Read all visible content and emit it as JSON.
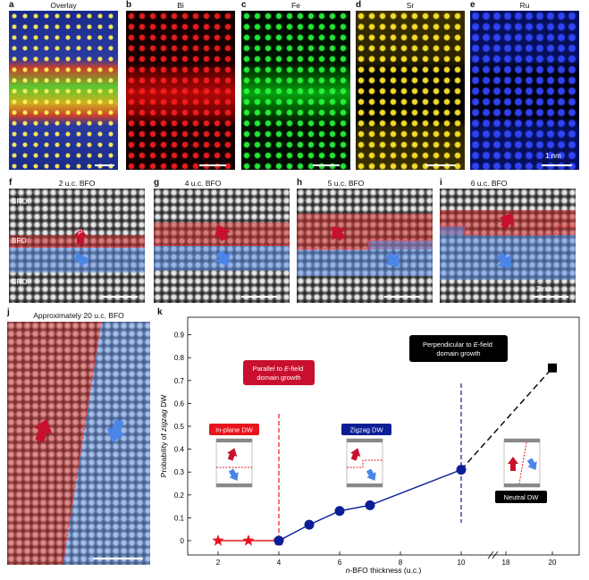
{
  "top_row": {
    "panels": [
      {
        "letter": "a",
        "title": "Overlay"
      },
      {
        "letter": "b",
        "title": "Bi"
      },
      {
        "letter": "c",
        "title": "Fe"
      },
      {
        "letter": "d",
        "title": "Sr"
      },
      {
        "letter": "e",
        "title": "Ru"
      }
    ],
    "scale_label": "1 nm"
  },
  "mid_row": {
    "panels": [
      {
        "letter": "f",
        "title": "2 u.c. BFO"
      },
      {
        "letter": "g",
        "title": "4 u.c. BFO"
      },
      {
        "letter": "h",
        "title": "5 u.c. BFO"
      },
      {
        "letter": "i",
        "title": "6 u.c. BFO"
      }
    ],
    "layer_labels": {
      "top": "SRO",
      "middle": "BFO",
      "bottom": "SRO"
    },
    "polarization_label": "P",
    "scale_label": "2 nm"
  },
  "panel_j": {
    "letter": "j",
    "title": "Approximately 20 u.c. BFO"
  },
  "panel_k": {
    "letter": "k",
    "chart_data": {
      "type": "line",
      "xlabel": "n-BFO thickness (u.c.)",
      "ylabel": "Probability of zigzag DW",
      "x_ticks": [
        "2",
        "4",
        "6",
        "8",
        "10",
        "18",
        "20"
      ],
      "y_ticks": [
        "0",
        "0.1",
        "0.2",
        "0.3",
        "0.4",
        "0.5",
        "0.6",
        "0.7",
        "0.8",
        "0.9"
      ],
      "ylim": [
        0,
        0.95
      ],
      "series": [
        {
          "marker": "star",
          "color": "#e8141c",
          "x": [
            2,
            3,
            4
          ],
          "y": [
            0,
            0,
            0
          ]
        },
        {
          "marker": "circle",
          "color": "#0a1f96",
          "x": [
            4,
            5,
            6,
            7,
            10
          ],
          "y": [
            0,
            0.07,
            0.13,
            0.155,
            0.31
          ]
        },
        {
          "marker": "square",
          "color": "#000000",
          "style": "dashed",
          "x": [
            10,
            20
          ],
          "y": [
            0.31,
            0.755
          ]
        }
      ],
      "vlines": [
        {
          "x": 4,
          "color": "#e8141c"
        },
        {
          "x": 10,
          "color": "#0a1f96"
        }
      ],
      "annotations": {
        "parallel": "Parallel to E-field domain growth",
        "perpendicular": "Perpendicular to E-field domain growth",
        "in_plane": "In-plane DW",
        "zigzag": "Zigzag DW",
        "neutral": "Neutral DW"
      }
    }
  }
}
